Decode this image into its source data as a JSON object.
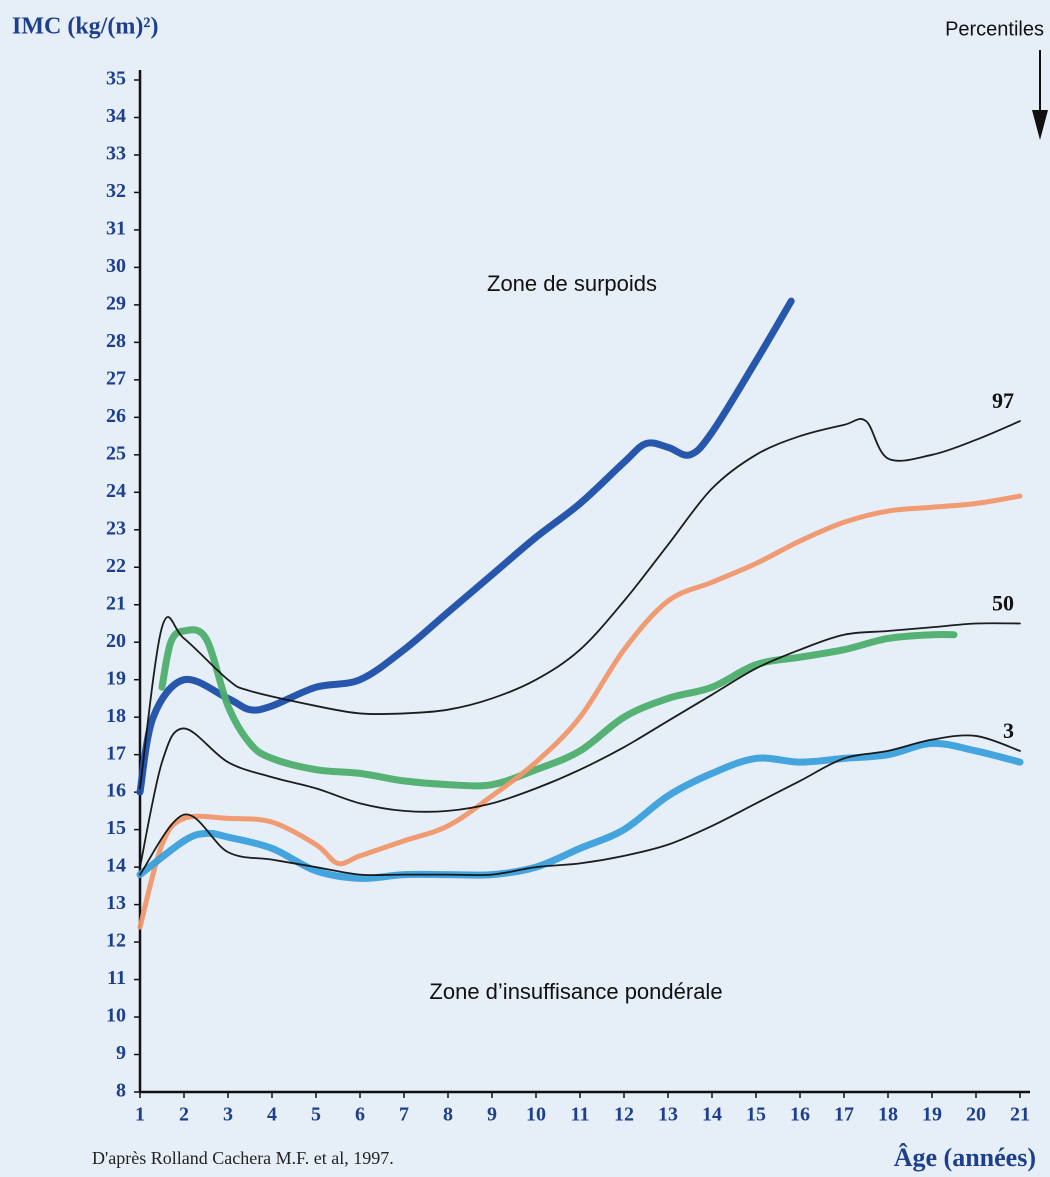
{
  "chart_data": {
    "type": "line",
    "ylabel": "IMC (kg/(m)²)",
    "xlabel": "Âge (années)",
    "percentile_label": "Percentiles",
    "source": "D'après Rolland Cachera M.F. et al, 1997.",
    "annotations": [
      "Zone de surpoids",
      "Zone d’insuffisance pondérale"
    ],
    "xlim": [
      1,
      21
    ],
    "ylim": [
      8,
      35
    ],
    "xticks": [
      1,
      2,
      3,
      4,
      5,
      6,
      7,
      8,
      9,
      10,
      11,
      12,
      13,
      14,
      15,
      16,
      17,
      18,
      19,
      20,
      21
    ],
    "yticks": [
      8,
      9,
      10,
      11,
      12,
      13,
      14,
      15,
      16,
      17,
      18,
      19,
      20,
      21,
      22,
      23,
      24,
      25,
      26,
      27,
      28,
      29,
      30,
      31,
      32,
      33,
      34,
      35
    ],
    "grid": false,
    "series": [
      {
        "name": "97",
        "color": "#111111",
        "x": [
          1,
          1.5,
          2,
          3,
          3.5,
          5,
          6,
          7,
          8,
          9,
          10,
          11,
          12,
          13,
          14,
          15,
          16,
          17,
          17.5,
          18,
          19,
          20,
          21
        ],
        "values": [
          16.1,
          20.4,
          20.1,
          19.0,
          18.7,
          18.3,
          18.1,
          18.1,
          18.2,
          18.5,
          19.0,
          19.8,
          21.1,
          22.6,
          24.1,
          25.0,
          25.5,
          25.8,
          25.9,
          24.9,
          25.0,
          25.4,
          25.9
        ]
      },
      {
        "name": "50",
        "color": "#111111",
        "x": [
          1,
          1.5,
          2,
          3,
          4,
          5,
          6,
          7,
          8,
          9,
          10,
          11,
          12,
          13,
          14,
          15,
          16,
          17,
          18,
          19,
          20,
          21
        ],
        "values": [
          14.0,
          16.8,
          17.7,
          16.8,
          16.4,
          16.1,
          15.7,
          15.5,
          15.5,
          15.7,
          16.1,
          16.6,
          17.2,
          17.9,
          18.6,
          19.3,
          19.8,
          20.2,
          20.3,
          20.4,
          20.5,
          20.5
        ]
      },
      {
        "name": "3",
        "color": "#111111",
        "x": [
          1,
          2,
          3,
          4,
          5,
          6,
          7,
          8,
          9,
          10,
          11,
          12,
          13,
          14,
          15,
          16,
          17,
          18,
          19,
          20,
          21
        ],
        "values": [
          13.8,
          15.4,
          14.4,
          14.2,
          14.0,
          13.8,
          13.8,
          13.8,
          13.8,
          14.0,
          14.1,
          14.3,
          14.6,
          15.1,
          15.7,
          16.3,
          16.9,
          17.1,
          17.4,
          17.5,
          17.1
        ]
      },
      {
        "color": "#1c4ea8",
        "x": [
          1,
          1.3,
          2,
          3,
          3.5,
          4,
          5,
          6,
          7,
          8,
          9,
          10,
          11,
          12,
          12.5,
          13,
          13.5,
          14,
          15,
          15.8
        ],
        "values": [
          16.0,
          18.0,
          19.0,
          18.5,
          18.2,
          18.3,
          18.8,
          19.0,
          19.8,
          20.8,
          21.8,
          22.8,
          23.7,
          24.8,
          25.3,
          25.2,
          25.0,
          25.6,
          27.5,
          29.1
        ]
      },
      {
        "color": "#4dad6d",
        "x": [
          1.5,
          1.7,
          2,
          2.5,
          3,
          3.5,
          4,
          5,
          6,
          7,
          8,
          9,
          10,
          11,
          12,
          13,
          14,
          15,
          16,
          17,
          18,
          19,
          19.5
        ],
        "values": [
          18.8,
          20.0,
          20.3,
          20.1,
          18.3,
          17.3,
          16.9,
          16.6,
          16.5,
          16.3,
          16.2,
          16.2,
          16.6,
          17.1,
          18.0,
          18.5,
          18.8,
          19.4,
          19.6,
          19.8,
          20.1,
          20.2,
          20.2
        ]
      },
      {
        "color": "#f0966a",
        "x": [
          1,
          1.5,
          2,
          3,
          4,
          5,
          5.5,
          6,
          7,
          8,
          9,
          10,
          11,
          12,
          13,
          14,
          15,
          16,
          17,
          18,
          19,
          20,
          21
        ],
        "values": [
          12.4,
          14.6,
          15.3,
          15.3,
          15.2,
          14.6,
          14.1,
          14.3,
          14.7,
          15.1,
          15.9,
          16.8,
          18.0,
          19.8,
          21.1,
          21.6,
          22.1,
          22.7,
          23.2,
          23.5,
          23.6,
          23.7,
          23.9
        ]
      },
      {
        "color": "#3a9fdc",
        "x": [
          1,
          2,
          2.5,
          3,
          4,
          5,
          6,
          7,
          8,
          9,
          10,
          11,
          12,
          13,
          14,
          15,
          16,
          17,
          18,
          19,
          20,
          21
        ],
        "values": [
          13.8,
          14.7,
          14.9,
          14.8,
          14.5,
          13.9,
          13.7,
          13.8,
          13.8,
          13.8,
          14.0,
          14.5,
          15.0,
          15.9,
          16.5,
          16.9,
          16.8,
          16.9,
          17.0,
          17.3,
          17.1,
          16.8
        ]
      }
    ]
  }
}
